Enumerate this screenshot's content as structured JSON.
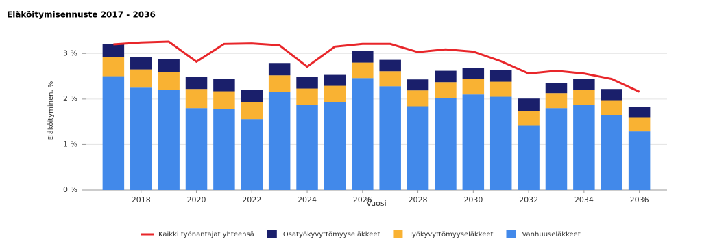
{
  "chart_data": {
    "type": "bar",
    "stacked": true,
    "title": "Eläköitymisennuste 2017 - 2036",
    "x_label": "Vuosi",
    "y_label": "Eläköityminen, %",
    "x": [
      2017,
      2018,
      2019,
      2020,
      2021,
      2022,
      2023,
      2024,
      2025,
      2026,
      2027,
      2028,
      2029,
      2030,
      2031,
      2032,
      2033,
      2034,
      2035,
      2036
    ],
    "xlim": [
      2016,
      2037
    ],
    "xticks": [
      2018,
      2020,
      2022,
      2024,
      2026,
      2028,
      2030,
      2032,
      2034,
      2036
    ],
    "ylim": [
      0,
      3.5
    ],
    "yticks": [
      {
        "value": 0,
        "label": "0 %"
      },
      {
        "value": 1,
        "label": "1 %"
      },
      {
        "value": 2,
        "label": "2 %"
      },
      {
        "value": 3,
        "label": "3 %"
      }
    ],
    "grid": true,
    "series": [
      {
        "name": "Kaikki työnantajat yhteensä",
        "type": "line",
        "color": "#e8262a",
        "values": [
          3.2,
          3.24,
          3.26,
          2.82,
          3.21,
          3.22,
          3.18,
          2.71,
          3.15,
          3.21,
          3.21,
          3.03,
          3.09,
          3.04,
          2.83,
          2.56,
          2.62,
          2.56,
          2.44,
          2.16
        ]
      },
      {
        "name": "Osatyökyvyttömyyseläkkeet",
        "type": "bar",
        "color": "#1a1f6b",
        "values": [
          0.29,
          0.27,
          0.29,
          0.27,
          0.27,
          0.27,
          0.27,
          0.26,
          0.24,
          0.26,
          0.25,
          0.24,
          0.25,
          0.24,
          0.26,
          0.27,
          0.22,
          0.24,
          0.26,
          0.23
        ]
      },
      {
        "name": "Työkyvyttömyyseläkkeet",
        "type": "bar",
        "color": "#f9b233",
        "values": [
          0.42,
          0.4,
          0.39,
          0.42,
          0.39,
          0.37,
          0.36,
          0.36,
          0.36,
          0.34,
          0.33,
          0.35,
          0.35,
          0.34,
          0.33,
          0.32,
          0.33,
          0.33,
          0.31,
          0.31
        ]
      },
      {
        "name": "Vanhuuseläkkeet",
        "type": "bar",
        "color": "#4289ea",
        "values": [
          2.5,
          2.25,
          2.2,
          1.8,
          1.78,
          1.56,
          2.16,
          1.87,
          1.93,
          2.46,
          2.28,
          1.84,
          2.02,
          2.1,
          2.05,
          1.42,
          1.8,
          1.87,
          1.65,
          1.29
        ]
      }
    ]
  }
}
